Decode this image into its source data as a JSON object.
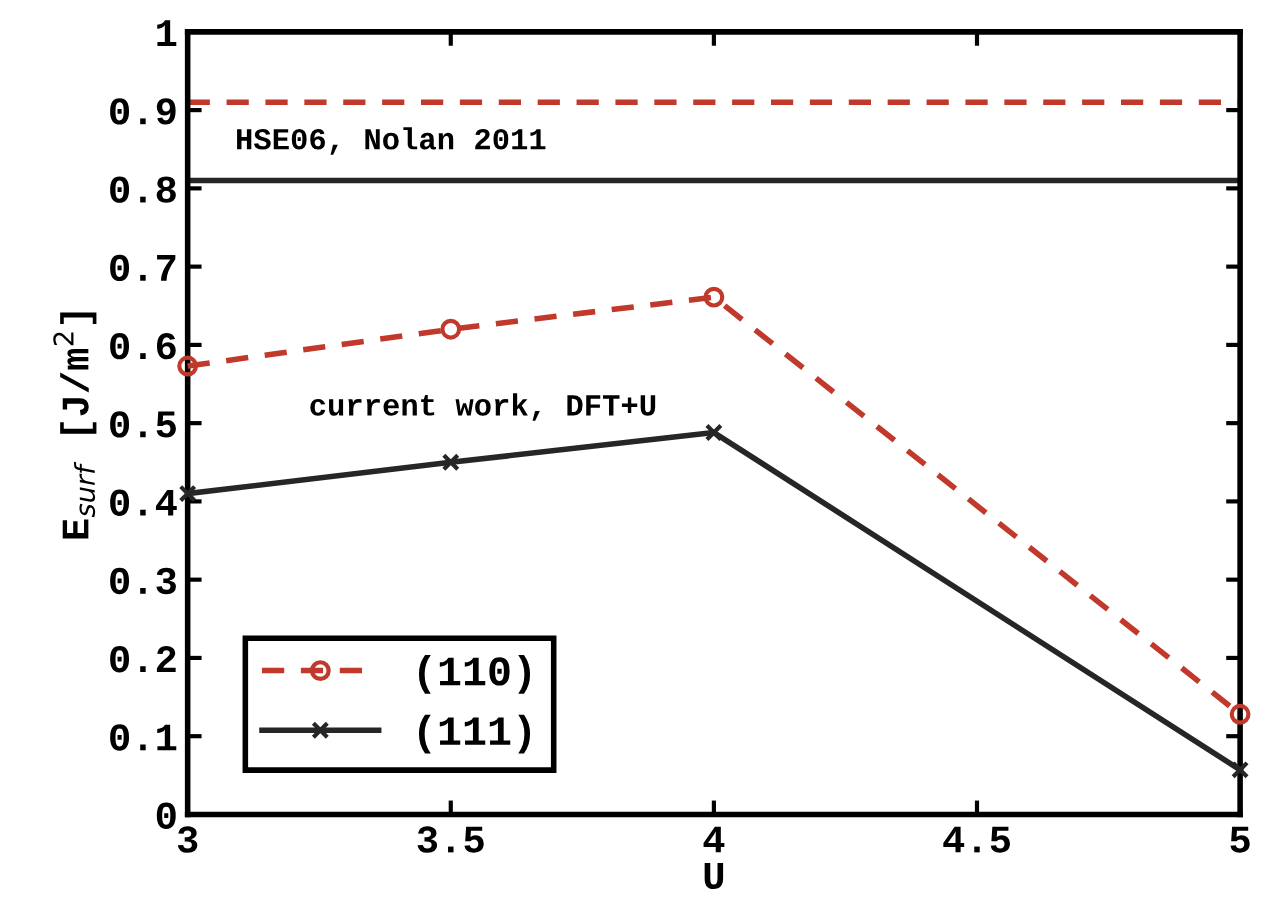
{
  "chart_data": {
    "type": "line",
    "xlabel": "U",
    "ylabel": "E$_{surf}$ [J/m$^{2}$]",
    "x": [
      3,
      3.5,
      4,
      5
    ],
    "series": [
      {
        "name": "(110)",
        "color": "#c0392b",
        "values": [
          0.573,
          0.62,
          0.661,
          0.128
        ],
        "marker": "circle",
        "line_style": "dashed"
      },
      {
        "name": "(111)",
        "color": "#262626",
        "values": [
          0.41,
          0.45,
          0.488,
          0.057
        ],
        "marker": "cross",
        "line_style": "solid"
      }
    ],
    "ref_lines": [
      {
        "axis": "y",
        "value": 0.91,
        "color": "#c0392b",
        "line_style": "dashed"
      },
      {
        "axis": "y",
        "value": 0.81,
        "color": "#262626",
        "line_style": "solid"
      }
    ],
    "annotations": [
      "HSE06, Nolan 2011",
      "current work, DFT+U"
    ],
    "xlim": [
      3,
      5
    ],
    "xticks": [
      3,
      3.5,
      4,
      4.5,
      5
    ],
    "ylim": [
      0,
      1
    ],
    "yticks": [
      0,
      0.1,
      0.2,
      0.3,
      0.4,
      0.5,
      0.6,
      0.7,
      0.8,
      0.9,
      1
    ],
    "grid": false,
    "legend": "bottom left"
  }
}
